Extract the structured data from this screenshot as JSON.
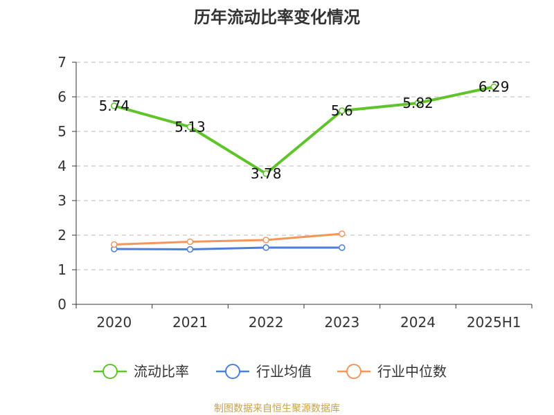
{
  "chart_data": {
    "type": "line",
    "title": "历年流动比率变化情况",
    "xlabel": "",
    "ylabel": "",
    "categories": [
      "2020",
      "2021",
      "2022",
      "2023",
      "2024",
      "2025H1"
    ],
    "ylim": [
      0,
      7
    ],
    "yticks": [
      0,
      1,
      2,
      3,
      4,
      5,
      6,
      7
    ],
    "grid": true,
    "legend_position": "bottom",
    "series": [
      {
        "name": "流动比率",
        "color": "#5ec42a",
        "values": [
          5.74,
          5.13,
          3.78,
          5.6,
          5.82,
          6.29
        ],
        "labels": [
          "5.74",
          "5.13",
          "3.78",
          "5.6",
          "5.82",
          "6.29"
        ]
      },
      {
        "name": "行业均值",
        "color": "#4a7fdb",
        "values": [
          1.6,
          1.59,
          1.64,
          1.64,
          null,
          null
        ]
      },
      {
        "name": "行业中位数",
        "color": "#f5955a",
        "values": [
          1.73,
          1.81,
          1.86,
          2.04,
          null,
          null
        ]
      }
    ]
  },
  "footer": {
    "source": "制图数据来自恒生聚源数据库"
  }
}
